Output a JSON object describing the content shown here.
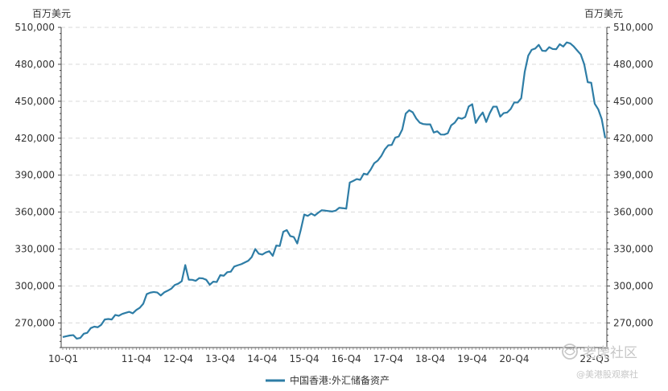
{
  "chart_data": {
    "type": "line",
    "units": {
      "left": "百万美元",
      "right": "百万美元"
    },
    "x_tick_labels": [
      "10-Q1",
      "11-Q4",
      "12-Q4",
      "13-Q4",
      "14-Q4",
      "15-Q4",
      "16-Q4",
      "17-Q4",
      "18-Q4",
      "19-Q4",
      "20-Q4",
      "22-Q3"
    ],
    "y_ticks": [
      270000,
      300000,
      330000,
      360000,
      390000,
      420000,
      450000,
      480000,
      510000
    ],
    "y_tick_labels": [
      "270,000",
      "300,000",
      "330,000",
      "360,000",
      "390,000",
      "420,000",
      "450,000",
      "480,000",
      "510,000"
    ],
    "ylim": [
      250000,
      510000
    ],
    "grid": true,
    "legend_position": "bottom",
    "color": "#2e7da6",
    "series": [
      {
        "name": "中国香港:外汇储备资产",
        "x_start": "2010-01",
        "x_end": "2022-09",
        "frequency": "monthly",
        "values": [
          258500,
          259200,
          259800,
          260100,
          257200,
          257800,
          261200,
          262000,
          265800,
          267000,
          266500,
          268500,
          272800,
          273200,
          272800,
          276500,
          275800,
          277300,
          278200,
          279000,
          277800,
          280500,
          282300,
          285600,
          293400,
          294600,
          295100,
          294700,
          292300,
          294800,
          296200,
          297800,
          300800,
          301900,
          303900,
          317000,
          305100,
          305000,
          304200,
          306400,
          306200,
          305000,
          301000,
          303500,
          303200,
          308800,
          308300,
          311200,
          311600,
          315800,
          316800,
          317700,
          319100,
          320500,
          323500,
          330000,
          326200,
          325500,
          327200,
          328200,
          324500,
          332800,
          332500,
          344000,
          345400,
          340500,
          339800,
          334500,
          345500,
          358000,
          356900,
          358800,
          357200,
          359500,
          361500,
          361200,
          360800,
          360500,
          361200,
          363500,
          363200,
          362800,
          384000,
          385300,
          386800,
          386200,
          391200,
          390500,
          394600,
          399700,
          401800,
          405500,
          410800,
          414200,
          414500,
          420500,
          421400,
          427000,
          440000,
          442700,
          441000,
          436000,
          432600,
          431500,
          431200,
          431200,
          424600,
          425600,
          423000,
          422900,
          424000,
          430500,
          432600,
          436600,
          435800,
          437200,
          445800,
          447600,
          432400,
          437300,
          440900,
          433200,
          440300,
          445600,
          445600,
          437500,
          440400,
          440900,
          443800,
          449000,
          449000,
          452500,
          473900,
          487000,
          491800,
          492800,
          495800,
          491000,
          490800,
          493900,
          492400,
          492300,
          496300,
          494400,
          497800,
          497000,
          494500,
          491200,
          488000,
          480000,
          465500,
          465000,
          448000,
          443500,
          435500,
          420100
        ]
      }
    ]
  },
  "watermark": {
    "icon": "snowball-logo",
    "brand": "老虎社区",
    "handle": "@美港股观察社"
  }
}
